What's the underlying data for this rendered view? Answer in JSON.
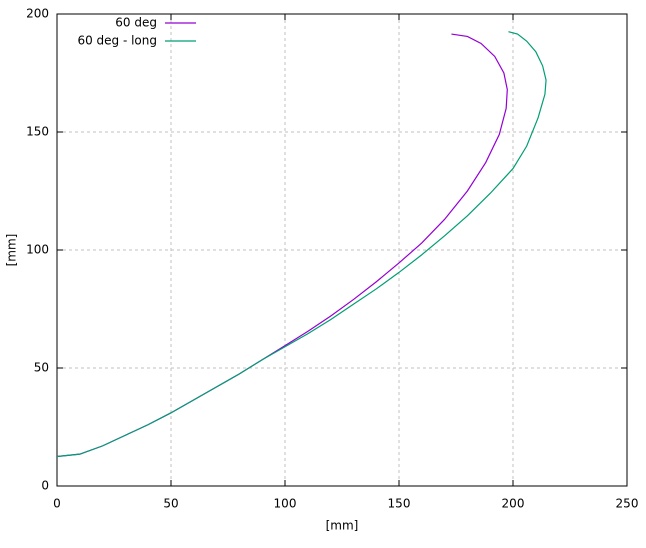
{
  "chart_data": {
    "type": "line",
    "x_label": "[mm]",
    "y_label": "[mm]",
    "xlim": [
      0,
      250
    ],
    "xticks": [
      0,
      50,
      100,
      150,
      200,
      250
    ],
    "ylim": [
      0,
      200
    ],
    "yticks": [
      0,
      50,
      100,
      150,
      200
    ],
    "grid": true,
    "legend": "top-left",
    "series": [
      {
        "name": "60 deg",
        "color": "#9400d3",
        "x": [
          0,
          10,
          20,
          30,
          40,
          50,
          60,
          70,
          80,
          90,
          100,
          110,
          120,
          130,
          140,
          150,
          160,
          170,
          180,
          188,
          194,
          197,
          197.5,
          196,
          192,
          186,
          180,
          173
        ],
        "values": [
          12.5,
          13.5,
          17,
          21.5,
          26,
          31,
          36.5,
          42,
          47.5,
          53.5,
          59.5,
          65.5,
          72,
          79,
          86.5,
          94.5,
          103,
          113,
          125,
          137,
          149,
          160,
          168,
          175,
          182,
          187.5,
          190.5,
          191.5
        ]
      },
      {
        "name": "60 deg - long",
        "color": "#009e73",
        "x": [
          0,
          10,
          20,
          30,
          40,
          50,
          60,
          70,
          80,
          90,
          100,
          110,
          120,
          130,
          140,
          150,
          160,
          170,
          180,
          190,
          200,
          206,
          211,
          214,
          214.5,
          213,
          210,
          206,
          202,
          198
        ],
        "values": [
          12.5,
          13.5,
          17,
          21.5,
          26,
          31,
          36.5,
          42,
          47.5,
          53.5,
          59,
          64.5,
          70.5,
          77,
          83.5,
          90.5,
          98,
          106,
          114.5,
          124,
          134.5,
          144,
          156,
          166,
          172,
          178,
          184,
          188.5,
          191.5,
          192.5
        ]
      }
    ]
  }
}
